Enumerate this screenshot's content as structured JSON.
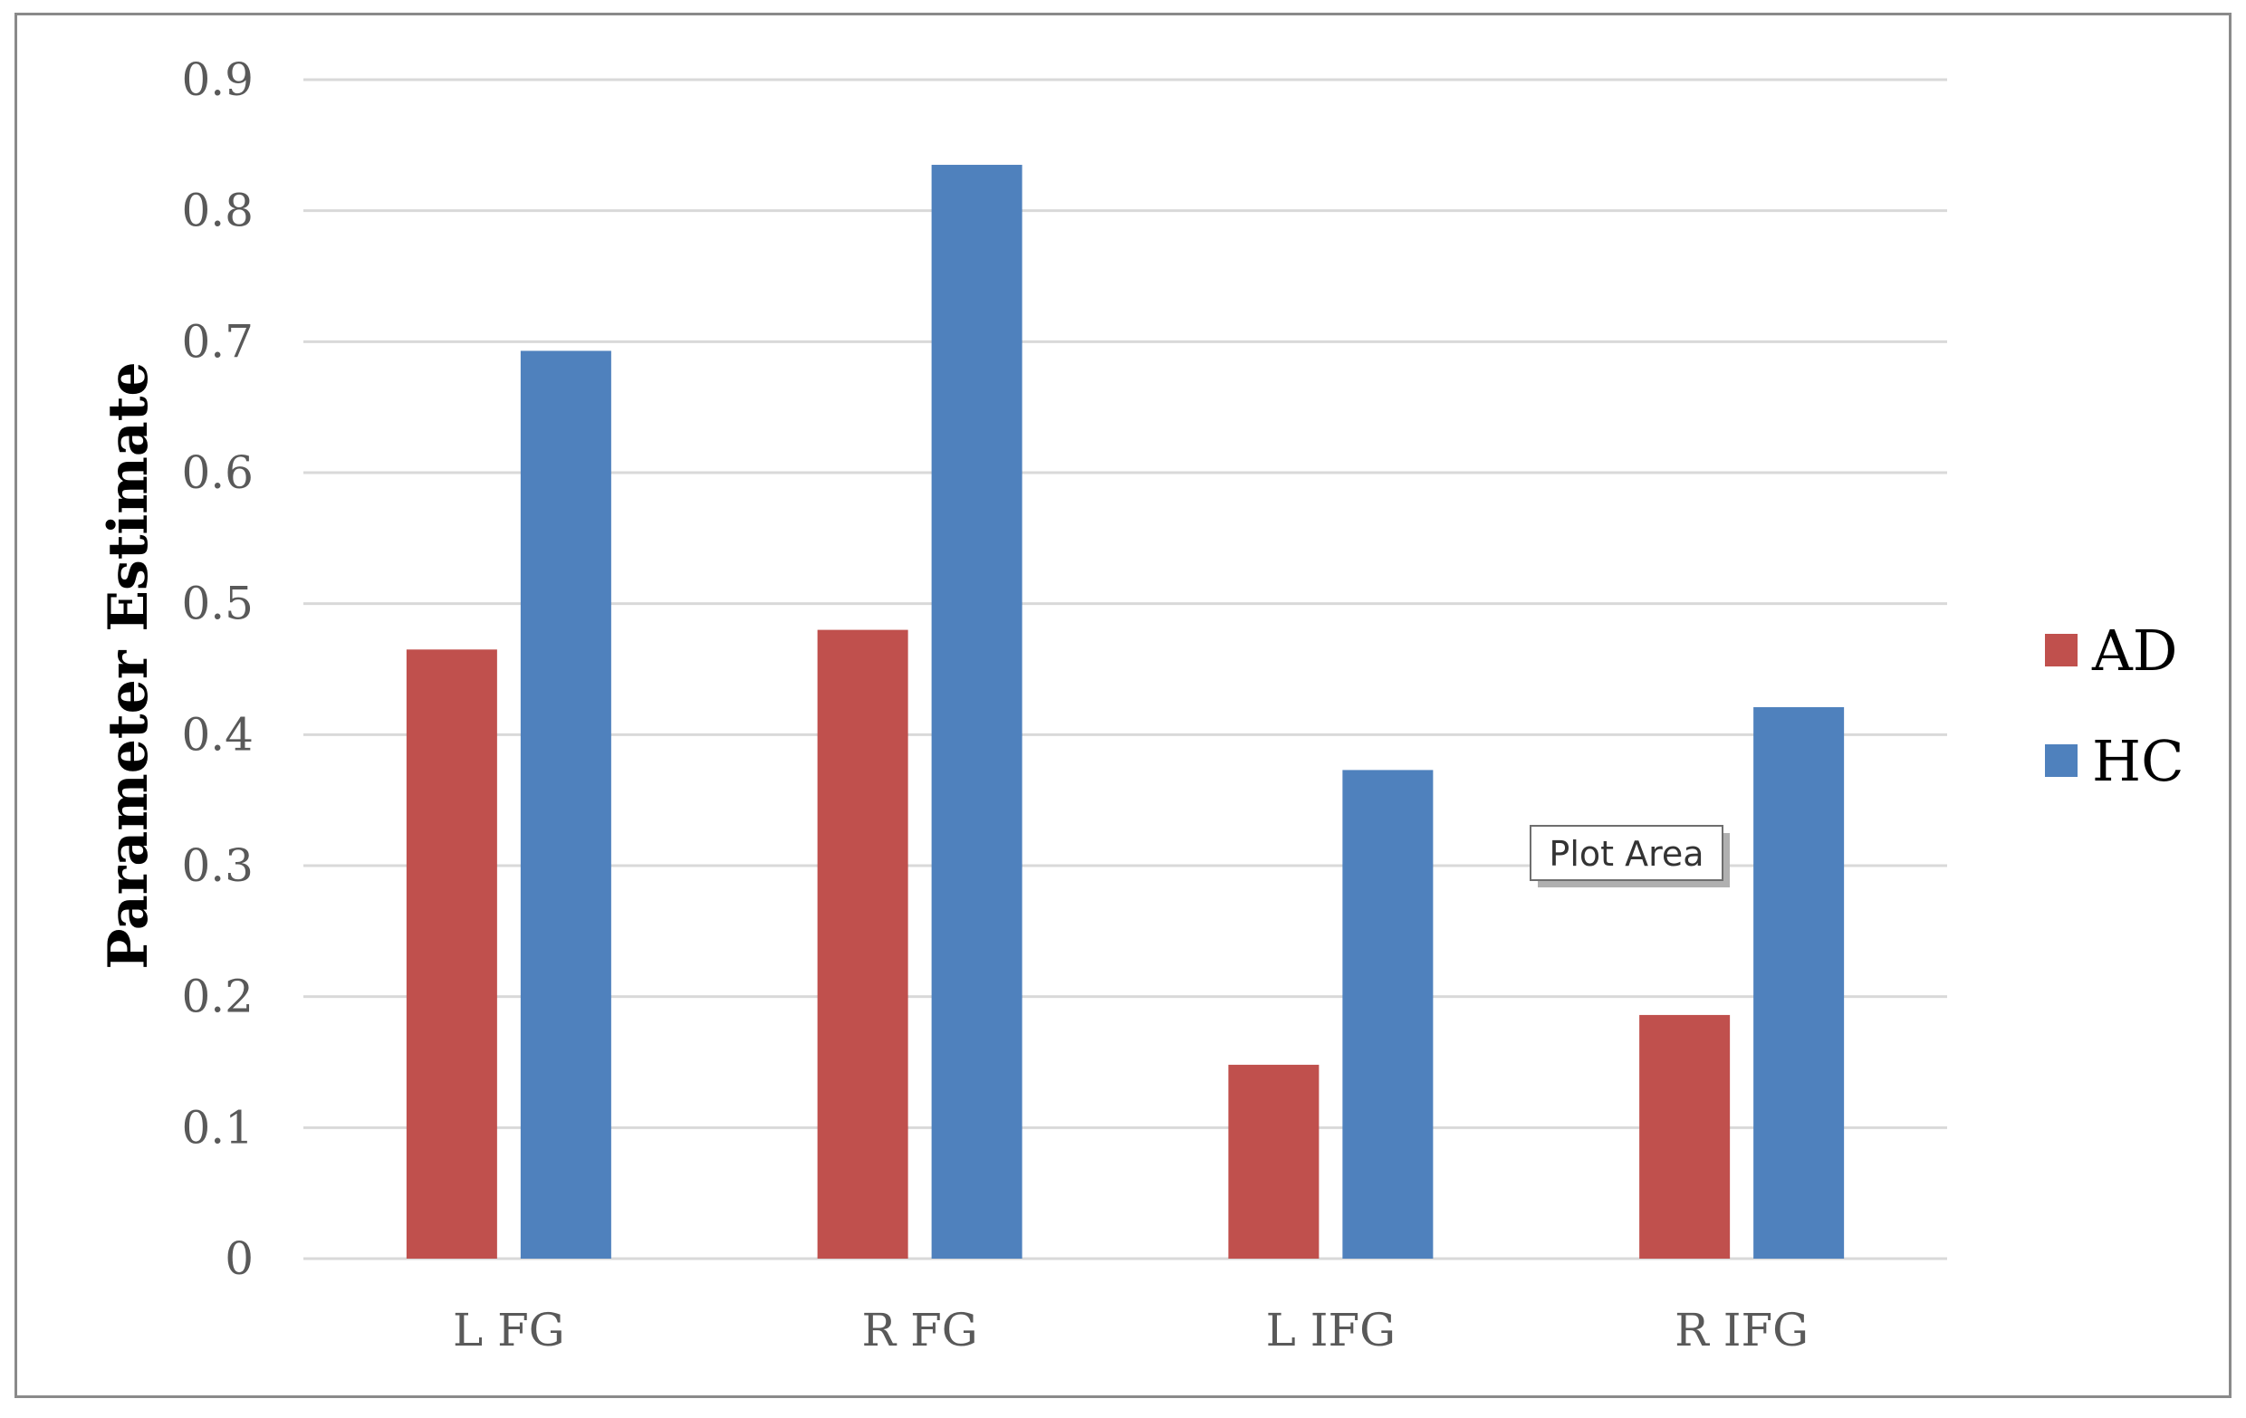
{
  "chart_data": {
    "type": "bar",
    "title": "",
    "xlabel": "",
    "ylabel": "Parameter Estimate",
    "ylim": [
      0,
      0.9
    ],
    "y_ticks": [
      "0",
      "0.1",
      "0.2",
      "0.3",
      "0.4",
      "0.5",
      "0.6",
      "0.7",
      "0.8",
      "0.9"
    ],
    "categories": [
      "L FG",
      "R FG",
      "L IFG",
      "R IFG"
    ],
    "series": [
      {
        "name": "AD",
        "color": "#c0504d",
        "values": [
          0.465,
          0.48,
          0.148,
          0.186
        ]
      },
      {
        "name": "HC",
        "color": "#4f81bd",
        "values": [
          0.693,
          0.835,
          0.373,
          0.421
        ]
      }
    ],
    "grid": true,
    "gridline_color": "#d9d9d9",
    "legend_position": "right"
  },
  "tooltip": {
    "label": "Plot Area"
  }
}
